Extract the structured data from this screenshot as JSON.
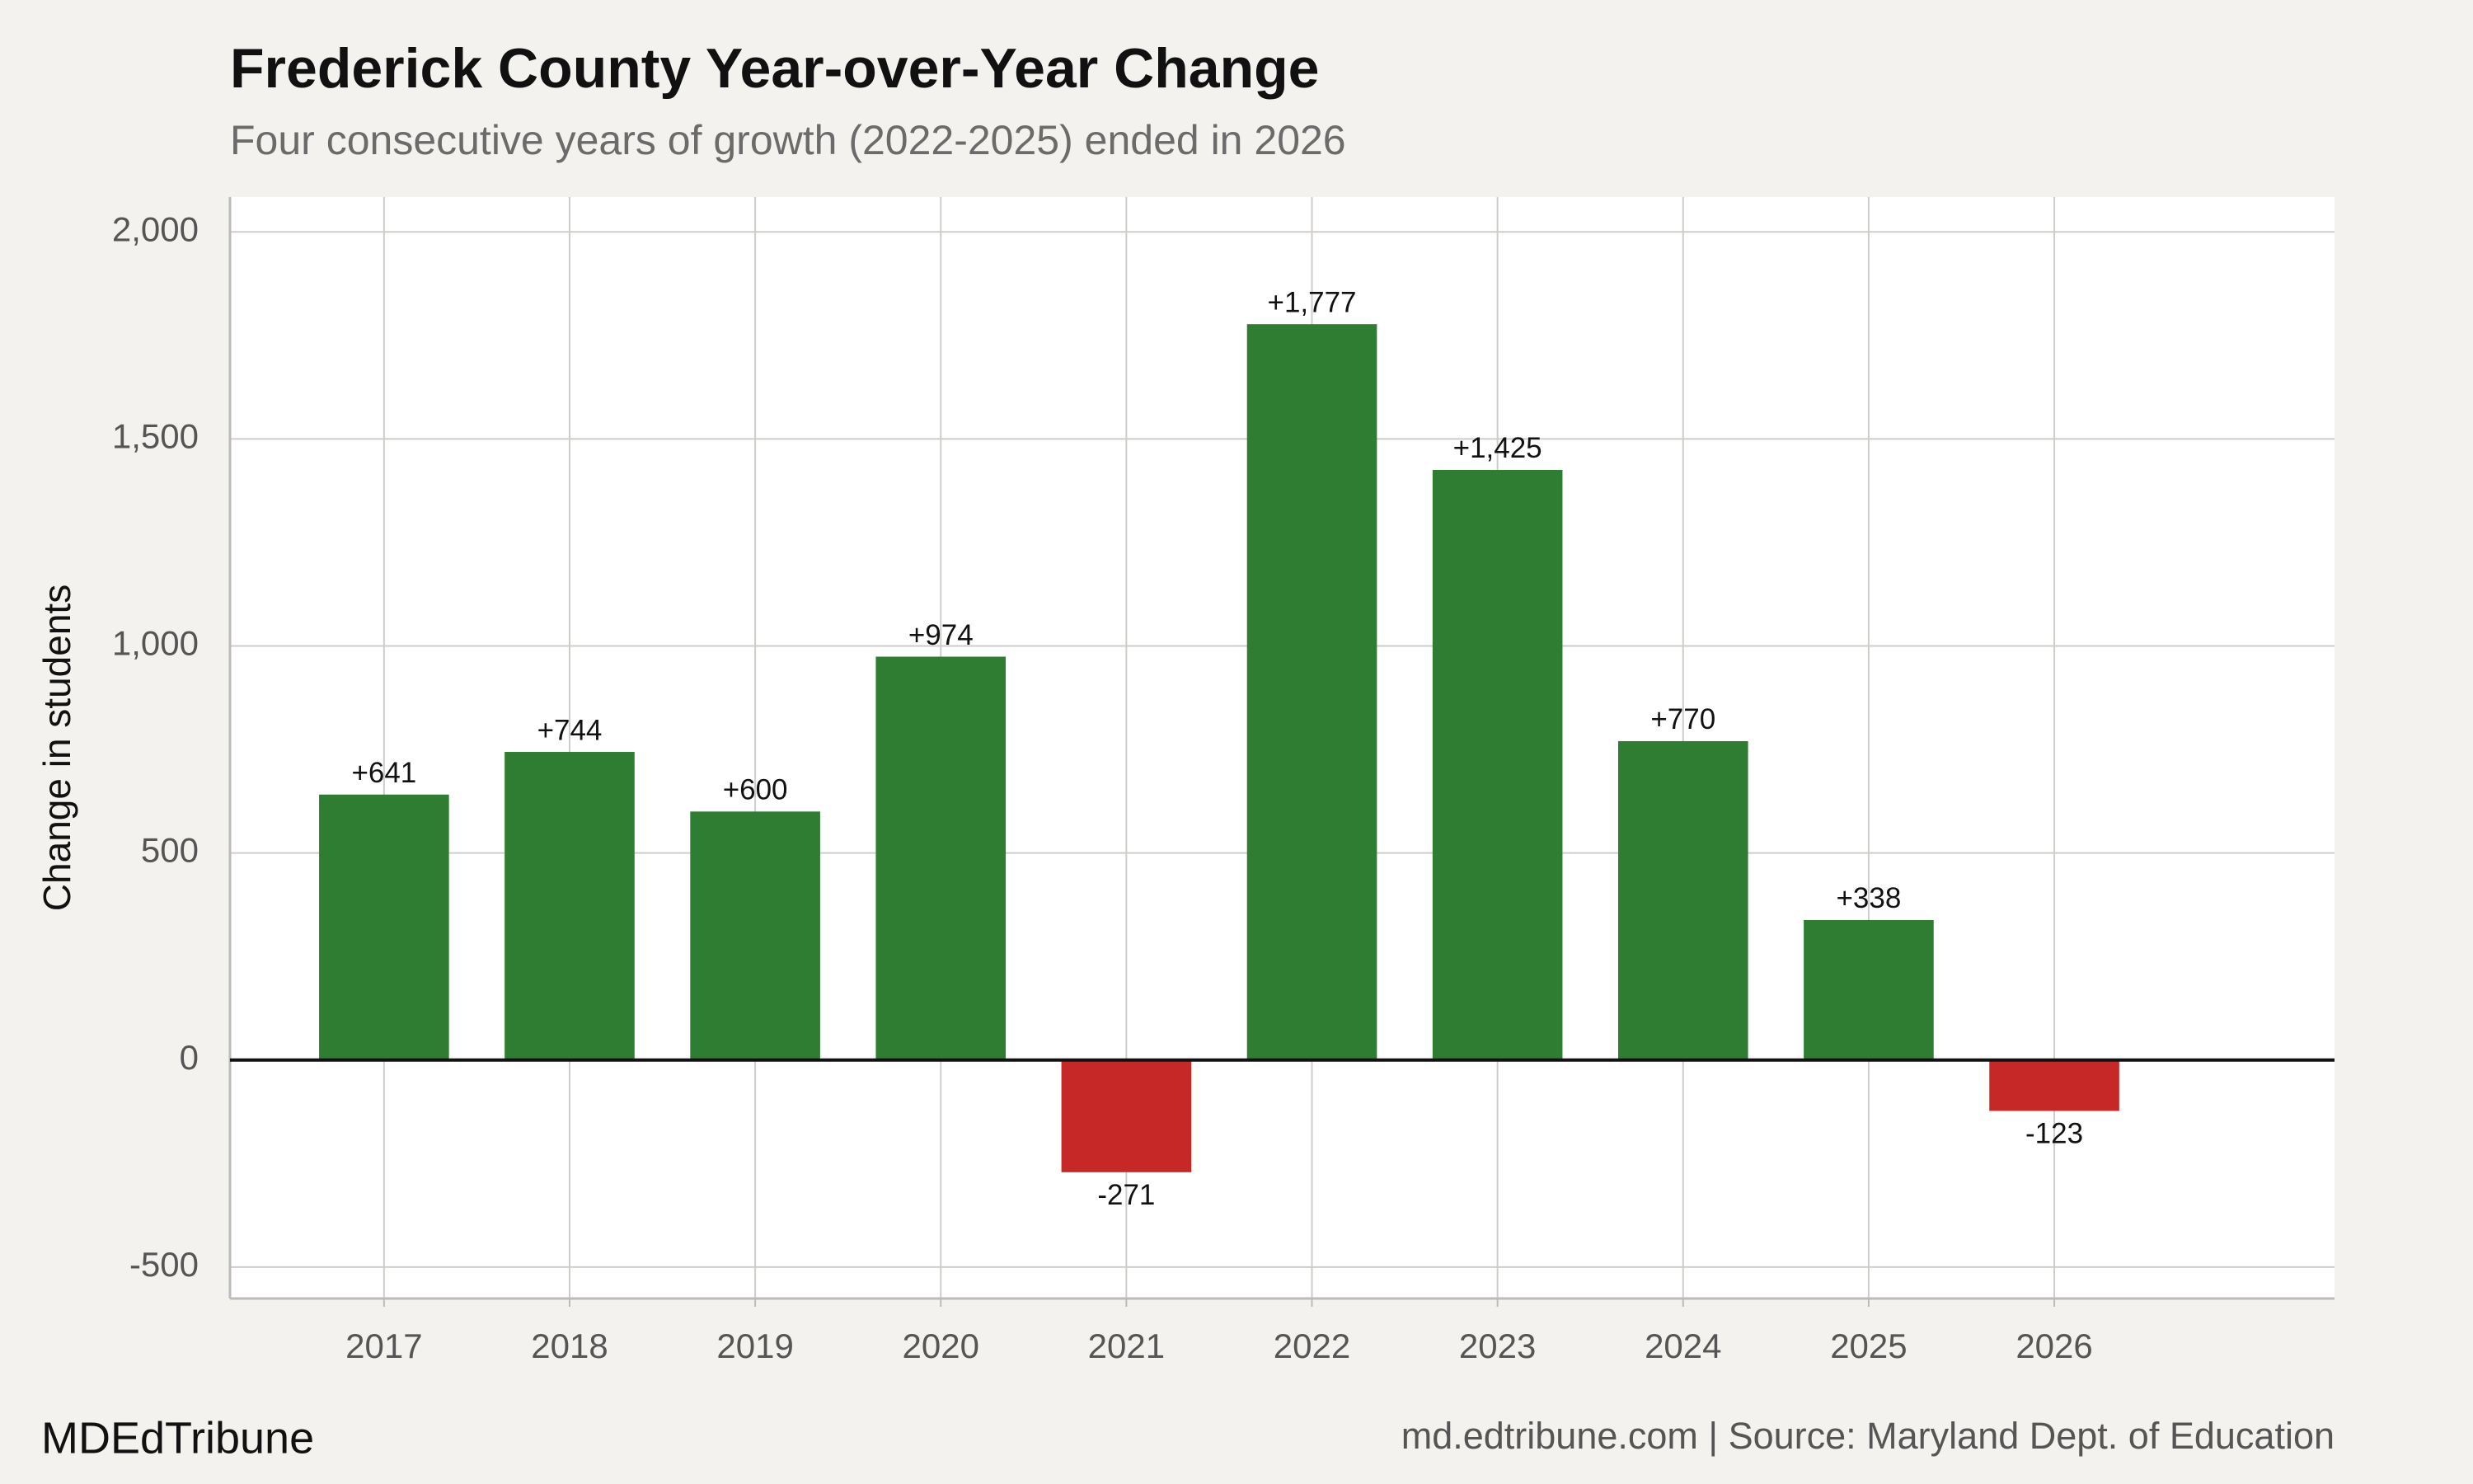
{
  "chart_data": {
    "type": "bar",
    "title": "Frederick County Year-over-Year Change",
    "subtitle": "Four consecutive years of growth (2022-2025) ended in 2026",
    "y_label": "Change in students",
    "x": [
      2017,
      2018,
      2019,
      2020,
      2021,
      2022,
      2023,
      2024,
      2025,
      2026
    ],
    "values": [
      641,
      744,
      600,
      974,
      -271,
      1777,
      1425,
      770,
      338,
      -123
    ],
    "value_labels": [
      "+641",
      "+744",
      "+600",
      "+974",
      "-271",
      "+1,777",
      "+1,425",
      "+770",
      "+338",
      "-123"
    ],
    "colors": [
      "#2e7d32",
      "#2e7d32",
      "#2e7d32",
      "#2e7d32",
      "#c62828",
      "#2e7d32",
      "#2e7d32",
      "#2e7d32",
      "#2e7d32",
      "#c62828"
    ],
    "xlim": [
      2016.17,
      2027.51
    ],
    "xticks": [
      2017,
      2018,
      2019,
      2020,
      2021,
      2022,
      2023,
      2024,
      2025,
      2026
    ],
    "ylim": [
      -576,
      2084
    ],
    "yticks": [
      -500,
      0,
      500,
      {
        "value": 1000,
        "label": "1,000"
      },
      {
        "value": 1500,
        "label": "1,500"
      },
      {
        "value": 2000,
        "label": "2,000"
      }
    ],
    "grid": true,
    "source_left": "MDEdTribune",
    "source_right": "md.edtribune.com | Source: Maryland Dept. of Education"
  }
}
